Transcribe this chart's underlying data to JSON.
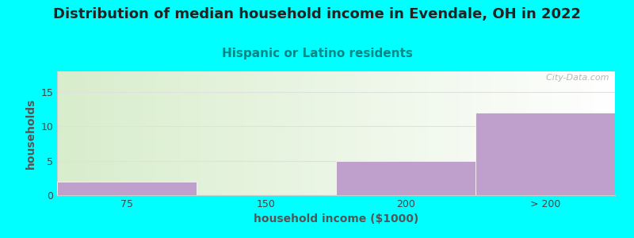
{
  "title": "Distribution of median household income in Evendale, OH in 2022",
  "subtitle": "Hispanic or Latino residents",
  "xlabel": "household income ($1000)",
  "ylabel": "households",
  "categories": [
    "75",
    "150",
    "200",
    "> 200"
  ],
  "values": [
    2,
    0,
    5,
    12
  ],
  "bar_color": "#bf9fcc",
  "bar_edge_color": "#bf9fcc",
  "background_color": "#00FFFF",
  "plot_bg_gradient_left": "#d8edcc",
  "plot_bg_gradient_right": "#f8f8f8",
  "yticks": [
    0,
    5,
    10,
    15
  ],
  "ylim": [
    0,
    18
  ],
  "title_fontsize": 13,
  "subtitle_fontsize": 11,
  "subtitle_color": "#008888",
  "axis_label_fontsize": 10,
  "tick_fontsize": 9,
  "watermark": "  City-Data.com"
}
